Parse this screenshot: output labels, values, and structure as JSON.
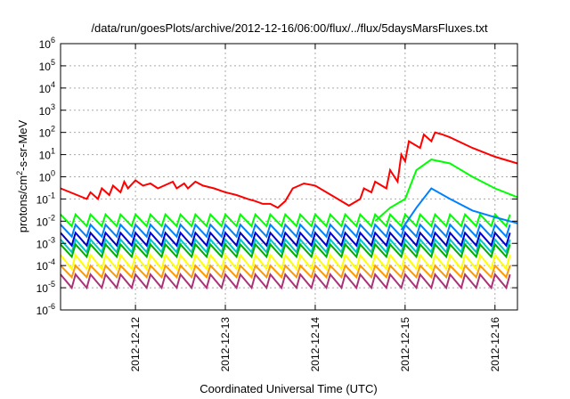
{
  "chart_data": {
    "type": "line",
    "title": "/data/run/goesPlots/archive/2012-12-16/06:00/flux/../flux/5daysMarsFluxes.txt",
    "xlabel": "Coordinated Universal Time (UTC)",
    "ylabel": {
      "base": "protons/cm",
      "sup": "2",
      "rest": "-s-sr-MeV"
    },
    "y_scale": "log",
    "ylim_exp": [
      -6,
      6
    ],
    "xlim": [
      "2012-12-11 04:00",
      "2012-12-16 06:00"
    ],
    "grid": true,
    "x_ticks": [
      "2012-12-12",
      "2012-12-13",
      "2012-12-14",
      "2012-12-15",
      "2012-12-16"
    ],
    "y_tick_exponents": [
      -6,
      -5,
      -4,
      -3,
      -2,
      -1,
      0,
      1,
      2,
      3,
      4,
      5,
      6
    ],
    "y_tick_base": "10",
    "series": [
      {
        "color": "#ff0000",
        "x": [
          "2012-12-11 04:00",
          "2012-12-11 11:00",
          "2012-12-11 12:00",
          "2012-12-11 14:00",
          "2012-12-11 15:00",
          "2012-12-11 17:00",
          "2012-12-11 18:00",
          "2012-12-11 20:00",
          "2012-12-11 21:00",
          "2012-12-11 22:00",
          "2012-12-12 00:00",
          "2012-12-12 02:00",
          "2012-12-12 04:00",
          "2012-12-12 06:00",
          "2012-12-12 10:00",
          "2012-12-12 11:00",
          "2012-12-12 13:00",
          "2012-12-12 14:00",
          "2012-12-12 16:00",
          "2012-12-12 18:00",
          "2012-12-12 21:00",
          "2012-12-13 00:00",
          "2012-12-13 03:00",
          "2012-12-13 06:00",
          "2012-12-13 08:00",
          "2012-12-13 10:00",
          "2012-12-13 12:00",
          "2012-12-13 14:00",
          "2012-12-13 16:00",
          "2012-12-13 18:00",
          "2012-12-13 21:00",
          "2012-12-14 00:00",
          "2012-12-14 03:00",
          "2012-12-14 06:00",
          "2012-12-14 09:00",
          "2012-12-14 12:00",
          "2012-12-14 13:00",
          "2012-12-14 15:00",
          "2012-12-14 16:00",
          "2012-12-14 19:00",
          "2012-12-14 20:00",
          "2012-12-14 22:00",
          "2012-12-14 23:00",
          "2012-12-15 00:00",
          "2012-12-15 01:00",
          "2012-12-15 04:00",
          "2012-12-15 05:00",
          "2012-12-15 07:00",
          "2012-12-15 08:00",
          "2012-12-15 10:00",
          "2012-12-15 12:00",
          "2012-12-15 18:00",
          "2012-12-16 00:00",
          "2012-12-16 06:00"
        ],
        "y": [
          0.3,
          0.1,
          0.2,
          0.1,
          0.3,
          0.15,
          0.4,
          0.2,
          0.6,
          0.3,
          0.7,
          0.4,
          0.5,
          0.3,
          0.6,
          0.3,
          0.5,
          0.3,
          0.6,
          0.4,
          0.3,
          0.2,
          0.15,
          0.1,
          0.08,
          0.06,
          0.06,
          0.04,
          0.08,
          0.3,
          0.5,
          0.4,
          0.2,
          0.1,
          0.05,
          0.1,
          0.3,
          0.2,
          0.6,
          0.3,
          2,
          0.6,
          10,
          5,
          40,
          20,
          80,
          40,
          100,
          80,
          60,
          20,
          8,
          4
        ]
      },
      {
        "color": "#00ff00",
        "x": [
          "2012-12-14 16:00",
          "2012-12-14 20:00",
          "2012-12-15 00:00",
          "2012-12-15 03:00",
          "2012-12-15 07:00",
          "2012-12-15 12:00",
          "2012-12-15 18:00",
          "2012-12-16 00:00",
          "2012-12-16 06:00"
        ],
        "y": [
          0.01,
          0.04,
          0.1,
          2,
          6,
          4,
          1,
          0.3,
          0.12
        ]
      },
      {
        "color": "#0080ff",
        "x": [
          "2012-12-14 23:00",
          "2012-12-15 03:00",
          "2012-12-15 07:00",
          "2012-12-15 12:00",
          "2012-12-15 18:00",
          "2012-12-16 00:00",
          "2012-12-16 06:00"
        ],
        "y": [
          0.004,
          0.04,
          0.3,
          0.1,
          0.03,
          0.015,
          0.008
        ]
      }
    ],
    "periodic_bands": [
      {
        "color": "#00ff00",
        "hi": 0.02,
        "lo": 0.006
      },
      {
        "color": "#0080ff",
        "hi": 0.007,
        "lo": 0.002
      },
      {
        "color": "#0000cc",
        "hi": 0.003,
        "lo": 0.0008
      },
      {
        "color": "#00c8c8",
        "hi": 0.0015,
        "lo": 0.0004
      },
      {
        "color": "#00b000",
        "hi": 0.0009,
        "lo": 0.00025
      },
      {
        "color": "#ffff00",
        "hi": 0.0003,
        "lo": 7e-05
      },
      {
        "color": "#ff9900",
        "hi": 0.0001,
        "lo": 3e-05
      },
      {
        "color": "#aa3377",
        "hi": 4e-05,
        "lo": 1e-05
      }
    ]
  }
}
